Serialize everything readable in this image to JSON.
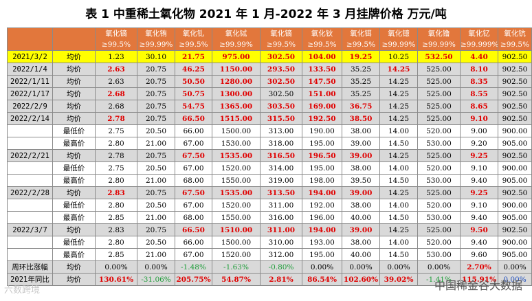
{
  "title": "表 1  中重稀土氧化物 2021 年 1 月-2022 年 3 月挂牌价格    万元/吨",
  "columns": [
    {
      "name": "氧化镝",
      "purity": "≥99.5%"
    },
    {
      "name": "氧化铕",
      "purity": "≥99.99%"
    },
    {
      "name": "氧化钆",
      "purity": "≥99.5%"
    },
    {
      "name": "氧化铽",
      "purity": "≥99.99%"
    },
    {
      "name": "氧化镝",
      "purity": "≥99.5%"
    },
    {
      "name": "氧化钬",
      "purity": "≥99.5%"
    },
    {
      "name": "氧化铒",
      "purity": "≥99.5%"
    },
    {
      "name": "氧化镱",
      "purity": "≥99.99%"
    },
    {
      "name": "氧化镥",
      "purity": "≥99.99%"
    },
    {
      "name": "氧化钇",
      "purity": "≥99.999%"
    },
    {
      "name": "氧化钪",
      "purity": "≥99.5%"
    }
  ],
  "rows": [
    {
      "date": "2021/3/2",
      "label": "均价",
      "style": "hl",
      "cells": [
        [
          "1.23",
          ""
        ],
        [
          "30.10",
          ""
        ],
        [
          "21.75",
          "r"
        ],
        [
          "975.00",
          "r"
        ],
        [
          "302.50",
          "r"
        ],
        [
          "104.00",
          "r"
        ],
        [
          "19.25",
          "r"
        ],
        [
          "10.25",
          ""
        ],
        [
          "532.50",
          "r"
        ],
        [
          "4.40",
          "r"
        ],
        [
          "902.50",
          ""
        ]
      ]
    },
    {
      "date": "2022/1/4",
      "label": "均价",
      "style": "gr",
      "cells": [
        [
          "2.63",
          "r"
        ],
        [
          "20.75",
          ""
        ],
        [
          "46.25",
          "r"
        ],
        [
          "1150.00",
          "r"
        ],
        [
          "293.50",
          "r"
        ],
        [
          "133.50",
          "r"
        ],
        [
          "35.25",
          ""
        ],
        [
          "14.25",
          "r"
        ],
        [
          "525.00",
          ""
        ],
        [
          "8.10",
          "r"
        ],
        [
          "902.50",
          ""
        ]
      ]
    },
    {
      "date": "2022/1/11",
      "label": "均价",
      "style": "gr",
      "cells": [
        [
          "2.63",
          ""
        ],
        [
          "20.75",
          ""
        ],
        [
          "50.50",
          "r"
        ],
        [
          "1280.00",
          "r"
        ],
        [
          "302.50",
          "r"
        ],
        [
          "147.50",
          "r"
        ],
        [
          "35.25",
          ""
        ],
        [
          "14.25",
          ""
        ],
        [
          "525.00",
          ""
        ],
        [
          "8.35",
          "r"
        ],
        [
          "902.50",
          ""
        ]
      ]
    },
    {
      "date": "2022/1/17",
      "label": "均价",
      "style": "gr",
      "cells": [
        [
          "2.68",
          "r"
        ],
        [
          "20.75",
          ""
        ],
        [
          "50.75",
          "r"
        ],
        [
          "1300.00",
          "r"
        ],
        [
          "302.50",
          ""
        ],
        [
          "151.00",
          "r"
        ],
        [
          "35.25",
          ""
        ],
        [
          "14.25",
          ""
        ],
        [
          "525.00",
          ""
        ],
        [
          "8.55",
          "r"
        ],
        [
          "902.50",
          ""
        ]
      ]
    },
    {
      "date": "2022/2/9",
      "label": "均价",
      "style": "gr",
      "cells": [
        [
          "2.68",
          ""
        ],
        [
          "20.75",
          ""
        ],
        [
          "54.75",
          "r"
        ],
        [
          "1365.00",
          "r"
        ],
        [
          "303.50",
          "r"
        ],
        [
          "169.00",
          "r"
        ],
        [
          "36.75",
          "r"
        ],
        [
          "14.25",
          ""
        ],
        [
          "525.00",
          ""
        ],
        [
          "8.65",
          "r"
        ],
        [
          "902.50",
          ""
        ]
      ]
    },
    {
      "date": "2022/2/14",
      "label": "均价",
      "style": "gr",
      "cells": [
        [
          "2.78",
          "r"
        ],
        [
          "20.75",
          ""
        ],
        [
          "66.50",
          "r"
        ],
        [
          "1515.00",
          "r"
        ],
        [
          "315.50",
          "r"
        ],
        [
          "192.50",
          "r"
        ],
        [
          "38.50",
          "r"
        ],
        [
          "14.25",
          ""
        ],
        [
          "525.00",
          ""
        ],
        [
          "9.10",
          "r"
        ],
        [
          "902.50",
          ""
        ]
      ]
    },
    {
      "date": "",
      "label": "最低价",
      "style": "wh",
      "cells": [
        [
          "2.75",
          ""
        ],
        [
          "20.50",
          ""
        ],
        [
          "66.00",
          ""
        ],
        [
          "1500.00",
          ""
        ],
        [
          "313.00",
          ""
        ],
        [
          "190.00",
          ""
        ],
        [
          "38.00",
          ""
        ],
        [
          "14.00",
          ""
        ],
        [
          "520.00",
          ""
        ],
        [
          "9.00",
          ""
        ],
        [
          "900.00",
          ""
        ]
      ]
    },
    {
      "date": "",
      "label": "最高价",
      "style": "wh",
      "cells": [
        [
          "2.80",
          ""
        ],
        [
          "21.00",
          ""
        ],
        [
          "67.00",
          ""
        ],
        [
          "1530.00",
          ""
        ],
        [
          "318.00",
          ""
        ],
        [
          "195.00",
          ""
        ],
        [
          "39.00",
          ""
        ],
        [
          "14.50",
          ""
        ],
        [
          "530.00",
          ""
        ],
        [
          "9.20",
          ""
        ],
        [
          "905.00",
          ""
        ]
      ]
    },
    {
      "date": "2022/2/21",
      "label": "均价",
      "style": "gr",
      "cells": [
        [
          "2.78",
          ""
        ],
        [
          "20.75",
          ""
        ],
        [
          "67.50",
          "r"
        ],
        [
          "1535.00",
          "r"
        ],
        [
          "316.50",
          "r"
        ],
        [
          "196.50",
          "r"
        ],
        [
          "39.00",
          "r"
        ],
        [
          "14.25",
          ""
        ],
        [
          "525.00",
          ""
        ],
        [
          "9.25",
          "r"
        ],
        [
          "902.50",
          ""
        ]
      ]
    },
    {
      "date": "",
      "label": "最低价",
      "style": "wh",
      "cells": [
        [
          "2.75",
          ""
        ],
        [
          "20.50",
          ""
        ],
        [
          "67.00",
          ""
        ],
        [
          "1520.00",
          ""
        ],
        [
          "314.00",
          ""
        ],
        [
          "195.00",
          ""
        ],
        [
          "38.00",
          ""
        ],
        [
          "14.00",
          ""
        ],
        [
          "520.00",
          ""
        ],
        [
          "9.10",
          ""
        ],
        [
          "900.00",
          ""
        ]
      ]
    },
    {
      "date": "",
      "label": "最高价",
      "style": "wh",
      "cells": [
        [
          "2.80",
          ""
        ],
        [
          "21.00",
          ""
        ],
        [
          "68.00",
          ""
        ],
        [
          "1550.00",
          ""
        ],
        [
          "319.00",
          ""
        ],
        [
          "198.00",
          ""
        ],
        [
          "39.50",
          ""
        ],
        [
          "14.50",
          ""
        ],
        [
          "530.00",
          ""
        ],
        [
          "9.40",
          ""
        ],
        [
          "905.00",
          ""
        ]
      ]
    },
    {
      "date": "2022/2/28",
      "label": "均价",
      "style": "gr",
      "cells": [
        [
          "2.83",
          "r"
        ],
        [
          "20.75",
          ""
        ],
        [
          "67.50",
          "r"
        ],
        [
          "1535.00",
          "r"
        ],
        [
          "313.50",
          "r"
        ],
        [
          "194.00",
          "r"
        ],
        [
          "39.00",
          "r"
        ],
        [
          "14.25",
          ""
        ],
        [
          "525.00",
          ""
        ],
        [
          "9.25",
          "r"
        ],
        [
          "902.50",
          ""
        ]
      ]
    },
    {
      "date": "",
      "label": "最低价",
      "style": "wh",
      "cells": [
        [
          "2.80",
          ""
        ],
        [
          "20.50",
          ""
        ],
        [
          "67.00",
          ""
        ],
        [
          "1520.00",
          ""
        ],
        [
          "311.00",
          ""
        ],
        [
          "192.00",
          ""
        ],
        [
          "38.00",
          ""
        ],
        [
          "14.00",
          ""
        ],
        [
          "520.00",
          ""
        ],
        [
          "9.10",
          ""
        ],
        [
          "900.00",
          ""
        ]
      ]
    },
    {
      "date": "",
      "label": "最高价",
      "style": "wh",
      "cells": [
        [
          "2.85",
          ""
        ],
        [
          "21.00",
          ""
        ],
        [
          "68.00",
          ""
        ],
        [
          "1550.00",
          ""
        ],
        [
          "316.00",
          ""
        ],
        [
          "196.00",
          ""
        ],
        [
          "40.00",
          ""
        ],
        [
          "14.50",
          ""
        ],
        [
          "530.00",
          ""
        ],
        [
          "9.40",
          ""
        ],
        [
          "905.00",
          ""
        ]
      ]
    },
    {
      "date": "2022/3/7",
      "label": "均价",
      "style": "gr",
      "cells": [
        [
          "2.83",
          ""
        ],
        [
          "20.75",
          ""
        ],
        [
          "66.50",
          "r"
        ],
        [
          "1510.00",
          "r"
        ],
        [
          "311.00",
          "r"
        ],
        [
          "194.00",
          "r"
        ],
        [
          "39.00",
          "r"
        ],
        [
          "14.25",
          ""
        ],
        [
          "525.00",
          ""
        ],
        [
          "9.50",
          "r"
        ],
        [
          "902.50",
          ""
        ]
      ]
    },
    {
      "date": "",
      "label": "最低价",
      "style": "wh",
      "cells": [
        [
          "2.80",
          ""
        ],
        [
          "20.50",
          ""
        ],
        [
          "66.00",
          ""
        ],
        [
          "1500.00",
          ""
        ],
        [
          "310.00",
          ""
        ],
        [
          "193.00",
          ""
        ],
        [
          "38.00",
          ""
        ],
        [
          "14.00",
          ""
        ],
        [
          "520.00",
          ""
        ],
        [
          "9.40",
          ""
        ],
        [
          "900.00",
          ""
        ]
      ]
    },
    {
      "date": "",
      "label": "最高价",
      "style": "wh",
      "cells": [
        [
          "2.85",
          ""
        ],
        [
          "21.00",
          ""
        ],
        [
          "67.00",
          ""
        ],
        [
          "1520.00",
          ""
        ],
        [
          "312.00",
          ""
        ],
        [
          "195.00",
          ""
        ],
        [
          "40.00",
          ""
        ],
        [
          "14.50",
          ""
        ],
        [
          "530.00",
          ""
        ],
        [
          "9.60",
          ""
        ],
        [
          "905.00",
          ""
        ]
      ]
    },
    {
      "date": "周环比涨幅",
      "label": "均价",
      "style": "gr",
      "cells": [
        [
          "0.00%",
          ""
        ],
        [
          "0.00%",
          ""
        ],
        [
          "-1.48%",
          "g"
        ],
        [
          "-1.63%",
          "g"
        ],
        [
          "-0.80%",
          "g"
        ],
        [
          "0.00%",
          ""
        ],
        [
          "0.00%",
          ""
        ],
        [
          "0.00%",
          ""
        ],
        [
          "0.00%",
          ""
        ],
        [
          "2.70%",
          "r"
        ],
        [
          "0.00%",
          ""
        ]
      ]
    },
    {
      "date": "2021年同比",
      "label": "均价",
      "style": "gr",
      "cells": [
        [
          "130.61%",
          "r"
        ],
        [
          "-31.06%",
          "g"
        ],
        [
          "205.75%",
          "r"
        ],
        [
          "54.87%",
          "r"
        ],
        [
          "2.81%",
          "r"
        ],
        [
          "86.54%",
          "r"
        ],
        [
          "102.60%",
          "r"
        ],
        [
          "39.02%",
          "r"
        ],
        [
          "-1.41%",
          "g"
        ],
        [
          "115.91%",
          "r"
        ],
        [
          "0.00%",
          "b"
        ]
      ]
    }
  ],
  "colors": {
    "header": "#e2773c",
    "highlight": "#ffff00",
    "shaded": "#d9d9d9",
    "rise": "#e00000",
    "fall": "#1f9d3a",
    "flat": "#1f4fbf"
  },
  "watermark_left": "六数跨境",
  "watermark_right": "中国稀金谷大数据"
}
